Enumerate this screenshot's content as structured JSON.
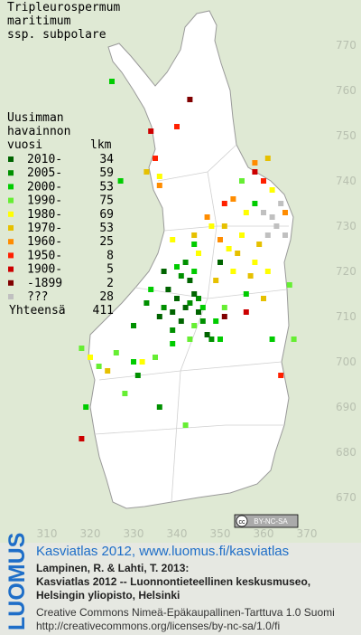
{
  "title": [
    "Tripleurospermum",
    "maritimum",
    "ssp. subpolare"
  ],
  "legend": {
    "heading": [
      "Uusimman",
      "havainnon",
      "vuosi"
    ],
    "count_heading": "lkm",
    "items": [
      {
        "label": "2010-",
        "count": 34,
        "color": "#006400",
        "squares": [
          [
            338,
            716
          ],
          [
            340,
            714
          ],
          [
            342,
            712
          ],
          [
            343,
            718
          ],
          [
            341,
            709
          ],
          [
            345,
            711
          ],
          [
            339,
            711
          ],
          [
            347,
            706
          ],
          [
            344,
            715
          ],
          [
            336,
            710
          ],
          [
            350,
            722
          ],
          [
            337,
            720
          ]
        ]
      },
      {
        "label": "2005-",
        "count": 59,
        "color": "#009000",
        "squares": [
          [
            341,
            719
          ],
          [
            343,
            713
          ],
          [
            345,
            714
          ],
          [
            339,
            707
          ],
          [
            337,
            712
          ],
          [
            348,
            705
          ],
          [
            346,
            709
          ],
          [
            333,
            713
          ],
          [
            342,
            722
          ],
          [
            336,
            690
          ],
          [
            330,
            708
          ],
          [
            331,
            697
          ]
        ]
      },
      {
        "label": "2000-",
        "count": 53,
        "color": "#00cc00",
        "squares": [
          [
            340,
            721
          ],
          [
            344,
            720
          ],
          [
            346,
            712
          ],
          [
            349,
            709
          ],
          [
            334,
            716
          ],
          [
            339,
            704
          ],
          [
            325,
            762
          ],
          [
            327,
            740
          ],
          [
            330,
            700
          ],
          [
            350,
            705
          ],
          [
            344,
            726
          ],
          [
            358,
            735
          ],
          [
            356,
            715
          ],
          [
            362,
            705
          ],
          [
            319,
            690
          ]
        ]
      },
      {
        "label": "1990-",
        "count": 75,
        "color": "#66ee33",
        "squares": [
          [
            322,
            699
          ],
          [
            326,
            702
          ],
          [
            335,
            701
          ],
          [
            344,
            708
          ],
          [
            343,
            705
          ],
          [
            351,
            712
          ],
          [
            366,
            717
          ],
          [
            367,
            705
          ],
          [
            318,
            703
          ],
          [
            355,
            740
          ],
          [
            328,
            693
          ],
          [
            342,
            686
          ]
        ]
      },
      {
        "label": "1980-",
        "count": 69,
        "color": "#ffff00",
        "squares": [
          [
            352,
            725
          ],
          [
            355,
            728
          ],
          [
            358,
            722
          ],
          [
            361,
            720
          ],
          [
            348,
            730
          ],
          [
            356,
            733
          ],
          [
            353,
            720
          ],
          [
            320,
            701
          ],
          [
            332,
            700
          ],
          [
            362,
            738
          ],
          [
            339,
            727
          ],
          [
            345,
            724
          ],
          [
            336,
            741
          ]
        ]
      },
      {
        "label": "1970-",
        "count": 53,
        "color": "#e6c000",
        "squares": [
          [
            351,
            730
          ],
          [
            354,
            724
          ],
          [
            359,
            726
          ],
          [
            344,
            728
          ],
          [
            357,
            719
          ],
          [
            349,
            718
          ],
          [
            324,
            698
          ],
          [
            333,
            742
          ],
          [
            361,
            745
          ],
          [
            360,
            714
          ]
        ]
      },
      {
        "label": "1960-",
        "count": 25,
        "color": "#ff8c00",
        "squares": [
          [
            347,
            732
          ],
          [
            353,
            736
          ],
          [
            336,
            739
          ],
          [
            358,
            744
          ],
          [
            365,
            733
          ],
          [
            350,
            727
          ]
        ]
      },
      {
        "label": "1950-",
        "count": 8,
        "color": "#ff2000",
        "squares": [
          [
            351,
            735
          ],
          [
            340,
            752
          ],
          [
            335,
            745
          ],
          [
            360,
            740
          ],
          [
            364,
            697
          ]
        ]
      },
      {
        "label": "1900-",
        "count": 5,
        "color": "#cc0000",
        "squares": [
          [
            358,
            742
          ],
          [
            356,
            711
          ],
          [
            318,
            683
          ],
          [
            334,
            751
          ]
        ]
      },
      {
        "label": "-1899",
        "count": 2,
        "color": "#800000",
        "squares": [
          [
            351,
            710
          ],
          [
            343,
            758
          ]
        ]
      },
      {
        "label": "???",
        "count": 28,
        "color": "#c0c0c0",
        "squares": [
          [
            362,
            732
          ],
          [
            363,
            730
          ],
          [
            365,
            728
          ],
          [
            361,
            728
          ],
          [
            364,
            735
          ],
          [
            360,
            733
          ]
        ]
      }
    ],
    "total_label": "Yhteensä",
    "total": 411
  },
  "xticks": [
    310,
    320,
    330,
    340,
    350,
    360,
    370
  ],
  "yticks": [
    770,
    760,
    750,
    740,
    730,
    720,
    710,
    700,
    690,
    680,
    670
  ],
  "license_badge": [
    "cc",
    "BY-NC-SA"
  ],
  "footer": {
    "logo": "LUOMUS",
    "link": "Kasviatlas 2012, www.luomus.fi/kasviatlas",
    "citation": [
      "Lampinen, R. & Lahti, T. 2013:",
      "Kasviatlas 2012 -- Luonnontieteellinen keskusmuseo,",
      "Helsingin yliopisto, Helsinki"
    ],
    "license": [
      "Creative Commons Nimeä-Epäkaupallinen-Tarttuva 1.0 Suomi",
      "http://creativecommons.org/licenses/by-nc-sa/1.0/fi"
    ]
  }
}
